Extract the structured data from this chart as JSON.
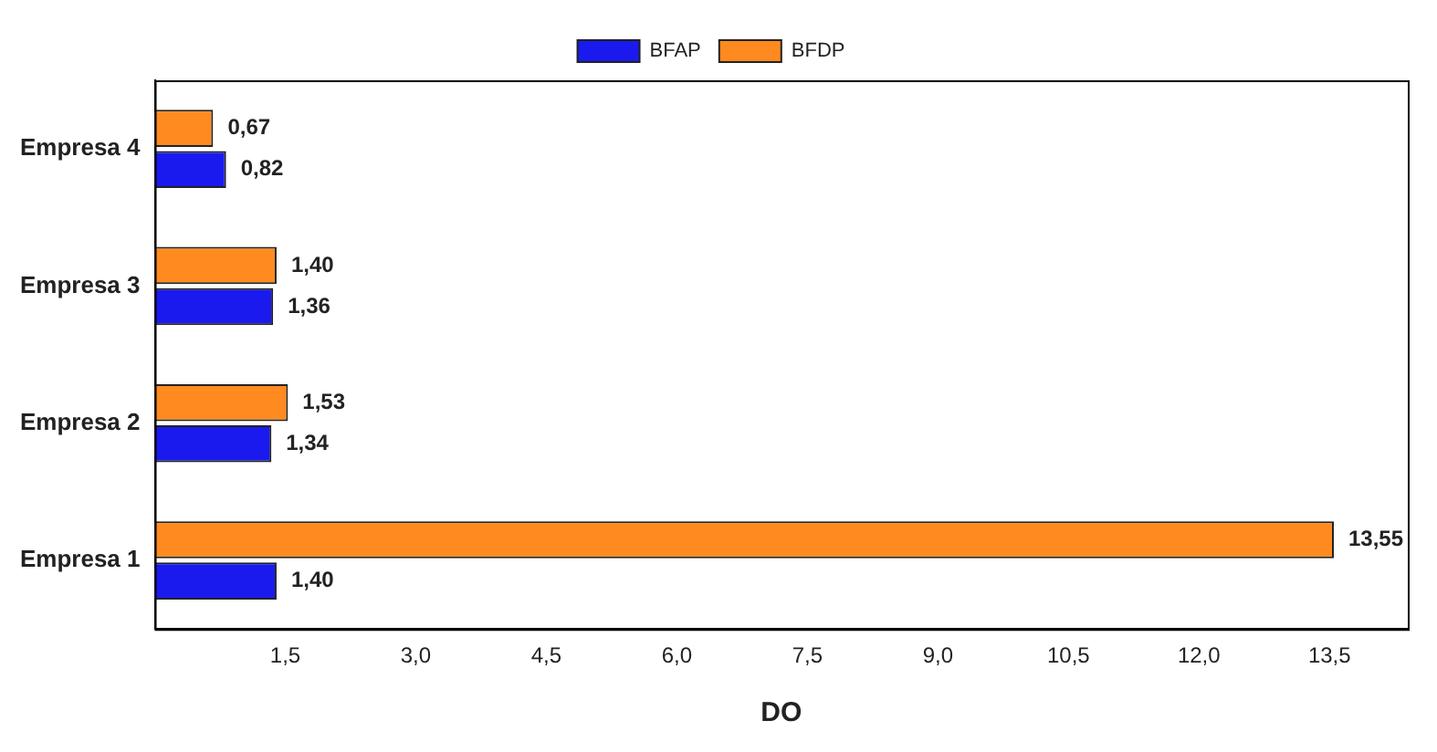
{
  "chart_data": {
    "type": "bar",
    "orientation": "horizontal",
    "categories": [
      "Empresa 4",
      "Empresa 3",
      "Empresa 2",
      "Empresa 1"
    ],
    "series": [
      {
        "name": "BFAP",
        "color": "#1a1aef",
        "values": [
          0.82,
          1.36,
          1.34,
          1.4
        ],
        "value_labels": [
          "0,82",
          "1,36",
          "1,34",
          "1,40"
        ]
      },
      {
        "name": "BFDP",
        "color": "#ff8a1f",
        "values": [
          0.67,
          1.4,
          1.53,
          13.55
        ],
        "value_labels": [
          "0,67",
          "1,40",
          "1,53",
          "13,55"
        ]
      }
    ],
    "xlabel": "DO",
    "xlim": [
      0,
      14.4
    ],
    "xticks": [
      {
        "value": 1.5,
        "label": "1,5"
      },
      {
        "value": 3,
        "label": "3,0"
      },
      {
        "value": 4.5,
        "label": "4,5"
      },
      {
        "value": 6,
        "label": "6,0"
      },
      {
        "value": 7.5,
        "label": "7,5"
      },
      {
        "value": 9,
        "label": "9,0"
      },
      {
        "value": 10.5,
        "label": "10,5"
      },
      {
        "value": 12,
        "label": "12,0"
      },
      {
        "value": 13.5,
        "label": "13,5"
      }
    ],
    "grid": false,
    "legend": "top"
  }
}
